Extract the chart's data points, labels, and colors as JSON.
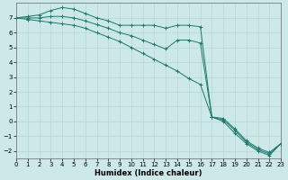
{
  "xlabel": "Humidex (Indice chaleur)",
  "bg_color": "#cce8e8",
  "grid_color": "#b8d8d0",
  "line_color": "#1a7a6a",
  "xlim": [
    0,
    23
  ],
  "ylim": [
    -2.5,
    8.0
  ],
  "xticks": [
    0,
    1,
    2,
    3,
    4,
    5,
    6,
    7,
    8,
    9,
    10,
    11,
    12,
    13,
    14,
    15,
    16,
    17,
    18,
    19,
    20,
    21,
    22,
    23
  ],
  "yticks": [
    -2,
    -1,
    0,
    1,
    2,
    3,
    4,
    5,
    6,
    7
  ],
  "line1_x": [
    0,
    1,
    2,
    3,
    4,
    5,
    6,
    7,
    8,
    9,
    10,
    11,
    12,
    13,
    14,
    15,
    16,
    17,
    18,
    19,
    20,
    21,
    22,
    23
  ],
  "line1_y": [
    7.0,
    7.1,
    7.2,
    7.5,
    7.7,
    7.6,
    7.3,
    7.0,
    6.8,
    6.5,
    6.5,
    6.5,
    6.5,
    6.3,
    6.5,
    6.5,
    6.4,
    0.3,
    0.2,
    -0.5,
    -1.3,
    -1.8,
    -2.1,
    -1.5
  ],
  "line2_x": [
    0,
    1,
    2,
    3,
    4,
    5,
    6,
    7,
    8,
    9,
    10,
    11,
    12,
    13,
    14,
    15,
    16,
    17,
    18,
    19,
    20,
    21,
    22,
    23
  ],
  "line2_y": [
    7.0,
    7.0,
    7.0,
    7.1,
    7.1,
    7.0,
    6.8,
    6.55,
    6.3,
    6.0,
    5.8,
    5.5,
    5.2,
    4.9,
    5.5,
    5.5,
    5.3,
    0.3,
    0.1,
    -0.6,
    -1.4,
    -1.9,
    -2.2,
    -1.5
  ],
  "line3_x": [
    0,
    1,
    2,
    3,
    4,
    5,
    6,
    7,
    8,
    9,
    10,
    11,
    12,
    13,
    14,
    15,
    16,
    17,
    18,
    19,
    20,
    21,
    22,
    23
  ],
  "line3_y": [
    7.0,
    6.9,
    6.8,
    6.7,
    6.6,
    6.5,
    6.3,
    6.0,
    5.7,
    5.4,
    5.0,
    4.6,
    4.2,
    3.8,
    3.4,
    2.9,
    2.5,
    0.3,
    0.0,
    -0.8,
    -1.5,
    -2.0,
    -2.3,
    -1.5
  ]
}
